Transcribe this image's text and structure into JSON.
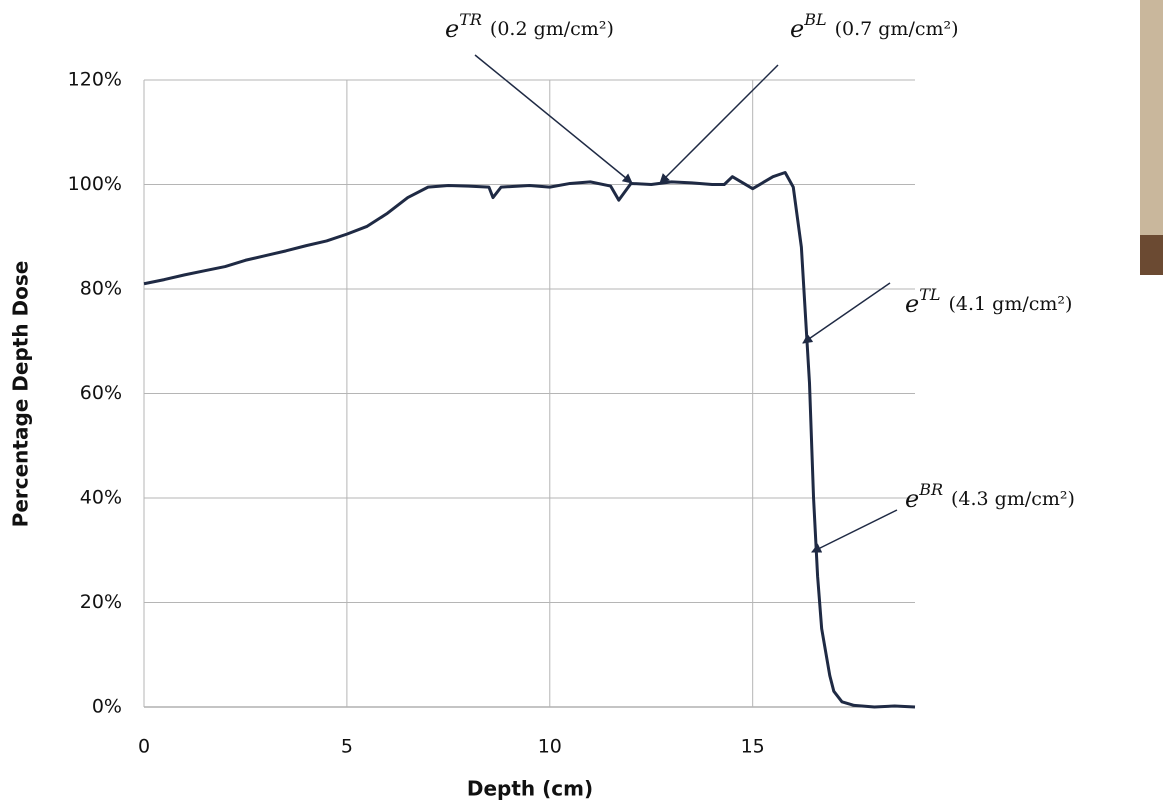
{
  "chart_data": {
    "type": "line",
    "x_label": "Depth (cm)",
    "y_label": "Percentage Depth Dose",
    "x": [
      0,
      0.5,
      1,
      1.5,
      2,
      2.5,
      3,
      3.5,
      4,
      4.5,
      5,
      5.5,
      6,
      6.5,
      7,
      7.5,
      8,
      8.5,
      8.6,
      8.8,
      9.5,
      10,
      10.5,
      11,
      11.5,
      11.7,
      12,
      12.5,
      13,
      13.5,
      14,
      14.3,
      14.5,
      15,
      15.5,
      15.8,
      16,
      16.2,
      16.4,
      16.5,
      16.6,
      16.7,
      16.9,
      17,
      17.2,
      17.5,
      18,
      18.5,
      19
    ],
    "series": [
      {
        "color": "#1f2a44",
        "values": [
          81,
          81.8,
          82.7,
          83.5,
          84.3,
          85.5,
          86.4,
          87.3,
          88.3,
          89.2,
          90.5,
          92,
          94.5,
          97.5,
          99.5,
          99.8,
          99.7,
          99.5,
          97.5,
          99.5,
          99.8,
          99.5,
          100.2,
          100.5,
          99.7,
          97,
          100.2,
          100,
          100.5,
          100.3,
          100,
          100,
          101.5,
          99.2,
          101.5,
          102.3,
          99.5,
          88,
          62,
          40,
          25,
          15,
          6,
          3,
          1,
          0.3,
          0,
          0.2,
          0
        ]
      }
    ],
    "xlim": [
      0,
      19
    ],
    "xticks": [
      0,
      5,
      10,
      15
    ],
    "ylim": [
      0,
      120
    ],
    "yticks": [
      {
        "value": 0,
        "label": "0%"
      },
      {
        "value": 20,
        "label": "20%"
      },
      {
        "value": 40,
        "label": "40%"
      },
      {
        "value": 60,
        "label": "60%"
      },
      {
        "value": 80,
        "label": "80%"
      },
      {
        "value": 100,
        "label": "100%"
      },
      {
        "value": 120,
        "label": "120%"
      }
    ],
    "grid": true,
    "annotations": [
      {
        "symbol": "e",
        "superscript": "TR",
        "note": "(0.2 gm/cm²)"
      },
      {
        "symbol": "e",
        "superscript": "BL",
        "note": "(0.7 gm/cm²)"
      },
      {
        "symbol": "e",
        "superscript": "TL",
        "note": "(4.1 gm/cm²)"
      },
      {
        "symbol": "e",
        "superscript": "BR",
        "note": "(4.3 gm/cm²)"
      }
    ]
  }
}
